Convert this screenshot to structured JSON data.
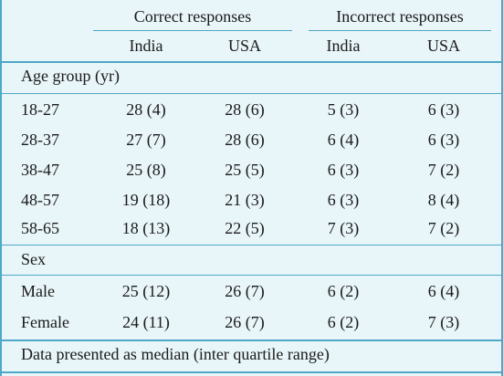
{
  "header": {
    "group1": "Correct responses",
    "group2": "Incorrect responses",
    "columns": [
      "India",
      "USA",
      "India",
      "USA"
    ]
  },
  "sections": [
    {
      "title": "Age group (yr)",
      "rows": [
        {
          "label": "18-27",
          "values": [
            "28 (4)",
            "28 (6)",
            "5 (3)",
            "6 (3)"
          ]
        },
        {
          "label": "28-37",
          "values": [
            "27 (7)",
            "28 (6)",
            "6 (4)",
            "6 (3)"
          ]
        },
        {
          "label": "38-47",
          "values": [
            "25 (8)",
            "25 (5)",
            "6 (3)",
            "7 (2)"
          ]
        },
        {
          "label": "48-57",
          "values": [
            "19 (18)",
            "21 (3)",
            "6 (3)",
            "8 (4)"
          ]
        },
        {
          "label": "58-65",
          "values": [
            "18 (13)",
            "22 (5)",
            "7 (3)",
            "7 (2)"
          ]
        }
      ]
    },
    {
      "title": "Sex",
      "rows": [
        {
          "label": "Male",
          "values": [
            "25 (12)",
            "26 (7)",
            "6 (2)",
            "6 (4)"
          ]
        },
        {
          "label": "Female",
          "values": [
            "24 (11)",
            "26 (7)",
            "6 (2)",
            "7 (3)"
          ]
        }
      ]
    }
  ],
  "footnote": "Data presented as median (inter quartile range)"
}
